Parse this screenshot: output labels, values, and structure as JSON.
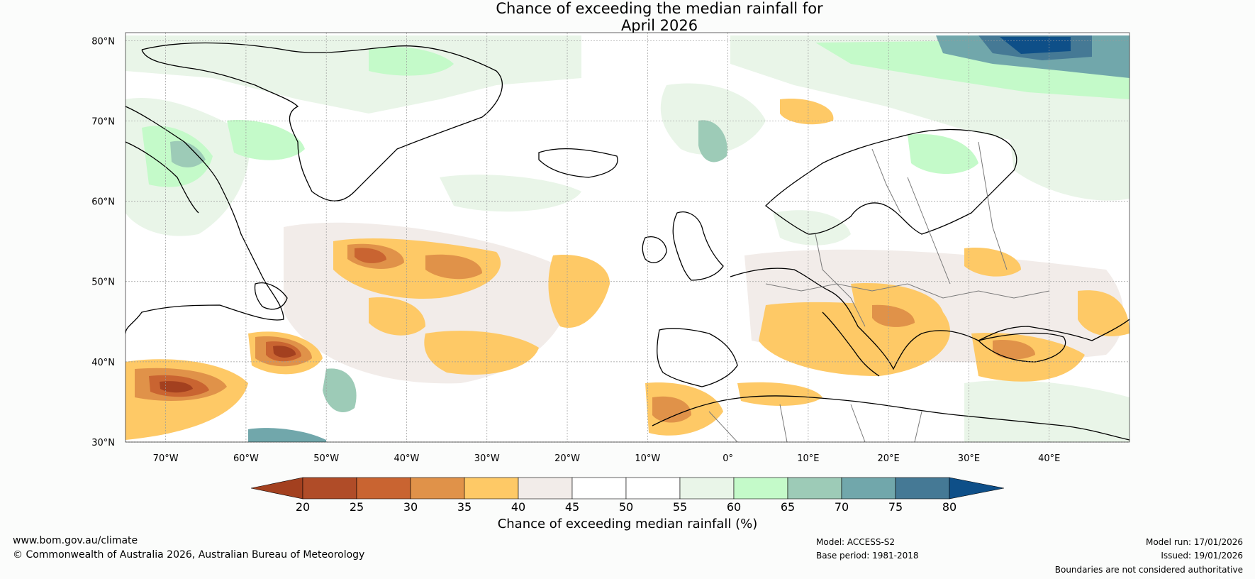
{
  "title": {
    "line1": "Chance of exceeding the median rainfall for",
    "line2": "April 2026"
  },
  "axes": {
    "lat_labels": [
      "80°N",
      "70°N",
      "60°N",
      "50°N",
      "40°N",
      "30°N"
    ],
    "lat_values": [
      80,
      70,
      60,
      50,
      40,
      30
    ],
    "lon_labels": [
      "70°W",
      "60°W",
      "50°W",
      "40°W",
      "30°W",
      "20°W",
      "10°W",
      "0°",
      "10°E",
      "20°E",
      "30°E",
      "40°E"
    ],
    "lon_values": [
      -70,
      -60,
      -50,
      -40,
      -30,
      -20,
      -10,
      0,
      10,
      20,
      30,
      40
    ],
    "lon_range": [
      -75,
      50
    ],
    "lat_range": [
      30,
      81
    ]
  },
  "colorbar": {
    "ticks": [
      "20",
      "25",
      "30",
      "35",
      "40",
      "45",
      "50",
      "55",
      "60",
      "65",
      "70",
      "75",
      "80"
    ],
    "colors": [
      "#a3401f",
      "#b04c28",
      "#c96431",
      "#e09249",
      "#fec966",
      "#f2ece9",
      "#ffffff",
      "#ffffff",
      "#e9f5e8",
      "#c4fac9",
      "#9dcbb7",
      "#71a7ab",
      "#457995",
      "#0e4f88"
    ],
    "label": "Chance of exceeding median rainfall (%)"
  },
  "footer": {
    "website": "www.bom.gov.au/climate",
    "copyright": "© Commonwealth of Australia 2026, Australian Bureau of Meteorology",
    "model": "Model: ACCESS-S2",
    "base_period": "Base period: 1981-2018",
    "model_run": "Model run: 17/01/2026",
    "issued": "Issued: 19/01/2026",
    "disclaimer": "Boundaries are not considered authoritative"
  }
}
